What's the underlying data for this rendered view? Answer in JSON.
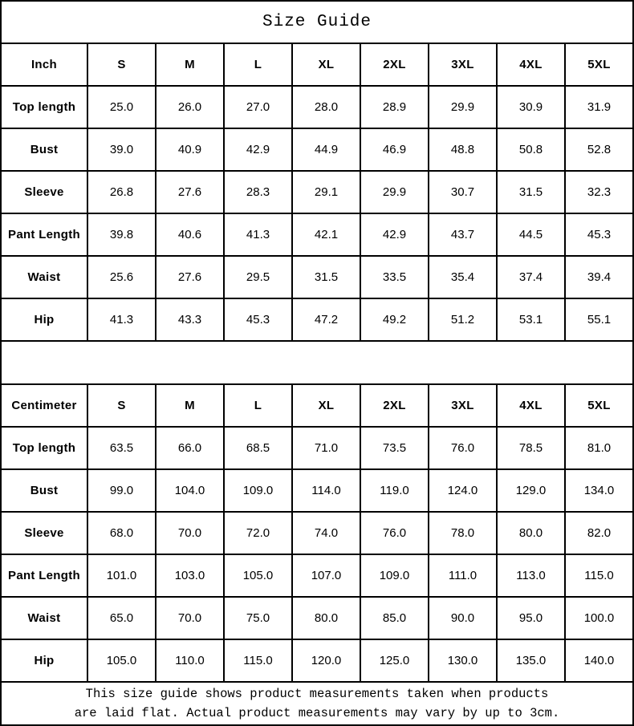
{
  "title": "Size Guide",
  "colors": {
    "background": "#ffffff",
    "border": "#000000",
    "text": "#000000"
  },
  "tables": [
    {
      "unit_label": "Inch",
      "sizes": [
        "S",
        "M",
        "L",
        "XL",
        "2XL",
        "3XL",
        "4XL",
        "5XL"
      ],
      "rows": [
        {
          "label": "Top length",
          "values": [
            "25.0",
            "26.0",
            "27.0",
            "28.0",
            "28.9",
            "29.9",
            "30.9",
            "31.9"
          ]
        },
        {
          "label": "Bust",
          "values": [
            "39.0",
            "40.9",
            "42.9",
            "44.9",
            "46.9",
            "48.8",
            "50.8",
            "52.8"
          ]
        },
        {
          "label": "Sleeve",
          "values": [
            "26.8",
            "27.6",
            "28.3",
            "29.1",
            "29.9",
            "30.7",
            "31.5",
            "32.3"
          ]
        },
        {
          "label": "Pant Length",
          "values": [
            "39.8",
            "40.6",
            "41.3",
            "42.1",
            "42.9",
            "43.7",
            "44.5",
            "45.3"
          ]
        },
        {
          "label": "Waist",
          "values": [
            "25.6",
            "27.6",
            "29.5",
            "31.5",
            "33.5",
            "35.4",
            "37.4",
            "39.4"
          ]
        },
        {
          "label": "Hip",
          "values": [
            "41.3",
            "43.3",
            "45.3",
            "47.2",
            "49.2",
            "51.2",
            "53.1",
            "55.1"
          ]
        }
      ]
    },
    {
      "unit_label": "Centimeter",
      "sizes": [
        "S",
        "M",
        "L",
        "XL",
        "2XL",
        "3XL",
        "4XL",
        "5XL"
      ],
      "rows": [
        {
          "label": "Top length",
          "values": [
            "63.5",
            "66.0",
            "68.5",
            "71.0",
            "73.5",
            "76.0",
            "78.5",
            "81.0"
          ]
        },
        {
          "label": "Bust",
          "values": [
            "99.0",
            "104.0",
            "109.0",
            "114.0",
            "119.0",
            "124.0",
            "129.0",
            "134.0"
          ]
        },
        {
          "label": "Sleeve",
          "values": [
            "68.0",
            "70.0",
            "72.0",
            "74.0",
            "76.0",
            "78.0",
            "80.0",
            "82.0"
          ]
        },
        {
          "label": "Pant Length",
          "values": [
            "101.0",
            "103.0",
            "105.0",
            "107.0",
            "109.0",
            "111.0",
            "113.0",
            "115.0"
          ]
        },
        {
          "label": "Waist",
          "values": [
            "65.0",
            "70.0",
            "75.0",
            "80.0",
            "85.0",
            "90.0",
            "95.0",
            "100.0"
          ]
        },
        {
          "label": "Hip",
          "values": [
            "105.0",
            "110.0",
            "115.0",
            "120.0",
            "125.0",
            "130.0",
            "135.0",
            "140.0"
          ]
        }
      ]
    }
  ],
  "footer": {
    "line1": "This size guide shows product measurements taken when products",
    "line2": "are laid flat. Actual product measurements may vary by up to 3cm."
  }
}
